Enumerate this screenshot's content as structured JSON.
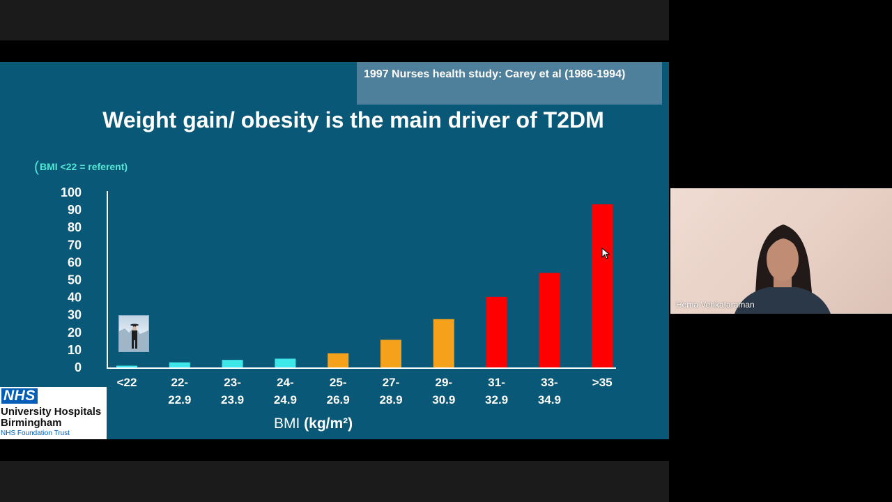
{
  "slide": {
    "citation": "1997 Nurses health study: Carey et al (1986-1994)",
    "title": "Weight gain/ obesity is the main driver of T2DM",
    "referent_note": "BMI <22 = referent)",
    "referent_paren": "(",
    "xlabel_main": "BMI ",
    "xlabel_unit": "(kg/m²)"
  },
  "chart_data": {
    "type": "bar",
    "title": "Weight gain/ obesity is the main driver of T2DM",
    "xlabel": "BMI (kg/m²)",
    "ylabel": "",
    "ylim": [
      0,
      100
    ],
    "yticks": [
      0,
      10,
      20,
      30,
      40,
      50,
      60,
      70,
      80,
      90,
      100
    ],
    "categories": [
      [
        "<22"
      ],
      [
        "22-",
        "22.9"
      ],
      [
        "23-",
        "23.9"
      ],
      [
        "24-",
        "24.9"
      ],
      [
        "25-",
        "26.9"
      ],
      [
        "27-",
        "28.9"
      ],
      [
        "29-",
        "30.9"
      ],
      [
        "31-",
        "32.9"
      ],
      [
        "33-",
        "34.9"
      ],
      [
        ">35"
      ]
    ],
    "values": [
      1,
      2.9,
      4.3,
      5,
      8.1,
      15.8,
      27.6,
      40.3,
      54,
      93.2
    ],
    "bar_colors": [
      "#3ee8ea",
      "#3ee8ea",
      "#3ee8ea",
      "#3ee8ea",
      "#f5a11c",
      "#f5a11c",
      "#f5a11c",
      "#ff0000",
      "#ff0000",
      "#ff0000"
    ],
    "grid": false
  },
  "logo": {
    "nhs_badge": "NHS",
    "org_line1": "University Hospitals",
    "org_line2": "Birmingham",
    "trust": "NHS Foundation Trust"
  },
  "video": {
    "participant_name": "Hema Venkataraman"
  }
}
